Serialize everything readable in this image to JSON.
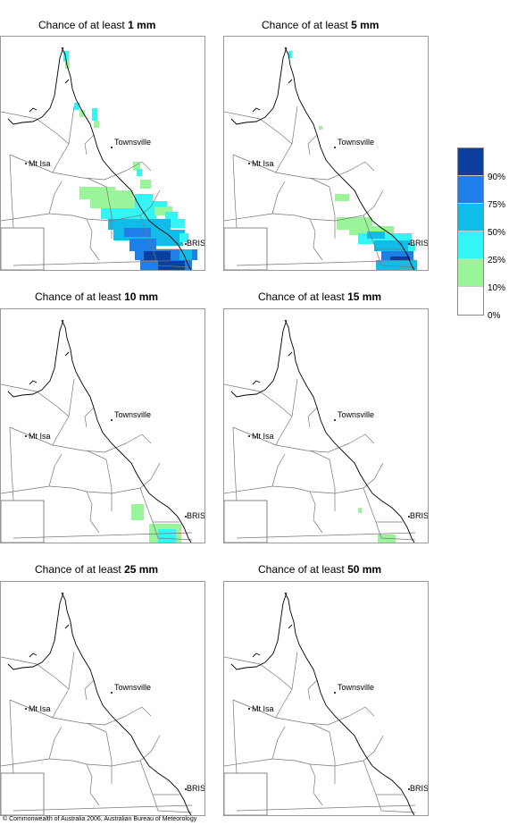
{
  "panels": [
    {
      "title_prefix": "Chance of at least ",
      "title_value": "1 mm"
    },
    {
      "title_prefix": "Chance of at least ",
      "title_value": "5 mm"
    },
    {
      "title_prefix": "Chance of at least ",
      "title_value": "10 mm"
    },
    {
      "title_prefix": "Chance of at least ",
      "title_value": "15 mm"
    },
    {
      "title_prefix": "Chance of at least ",
      "title_value": "25 mm"
    },
    {
      "title_prefix": "Chance of at least ",
      "title_value": "50 mm"
    }
  ],
  "places": {
    "townsville": "Townsville",
    "mt_isa": "Mt Isa",
    "bris": "BRIS"
  },
  "legend": {
    "labels": [
      "90%",
      "75%",
      "50%",
      "25%",
      "10%",
      "0%"
    ],
    "colors": [
      "#0b3f9f",
      "#1f7fe8",
      "#11bde8",
      "#33f5f5",
      "#9af59a",
      "#ffffff"
    ]
  },
  "copyright": "© Commonwealth of Australia 2006, Australian Bureau of Meteorology"
}
